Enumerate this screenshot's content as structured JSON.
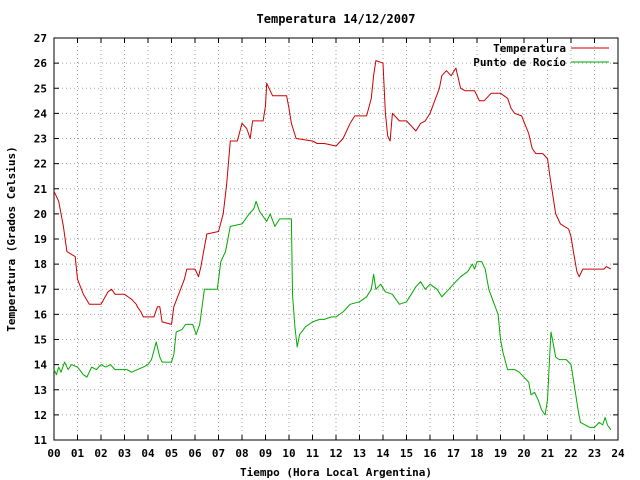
{
  "chart_data": {
    "type": "line",
    "title": "Temperatura 14/12/2007",
    "xlabel": "Tiempo (Hora Local Argentina)",
    "ylabel": "Temperatura (Grados Celsius)",
    "xlim": [
      0,
      24
    ],
    "ylim": [
      11,
      27
    ],
    "x_ticks": [
      "00",
      "01",
      "02",
      "03",
      "04",
      "05",
      "06",
      "07",
      "08",
      "09",
      "10",
      "11",
      "12",
      "13",
      "14",
      "15",
      "16",
      "17",
      "18",
      "19",
      "20",
      "21",
      "22",
      "23",
      "24"
    ],
    "y_ticks": [
      11,
      12,
      13,
      14,
      15,
      16,
      17,
      18,
      19,
      20,
      21,
      22,
      23,
      24,
      25,
      26,
      27
    ],
    "grid": true,
    "legend_position": "top-right",
    "series": [
      {
        "name": "Temperatura",
        "color": "#cc0000",
        "points": [
          [
            0.0,
            20.9
          ],
          [
            0.2,
            20.5
          ],
          [
            0.4,
            19.5
          ],
          [
            0.55,
            18.5
          ],
          [
            0.9,
            18.3
          ],
          [
            1.0,
            17.4
          ],
          [
            1.25,
            16.8
          ],
          [
            1.5,
            16.4
          ],
          [
            2.0,
            16.4
          ],
          [
            2.3,
            16.9
          ],
          [
            2.45,
            17.0
          ],
          [
            2.6,
            16.8
          ],
          [
            3.0,
            16.8
          ],
          [
            3.3,
            16.6
          ],
          [
            3.5,
            16.4
          ],
          [
            3.55,
            16.3
          ],
          [
            3.7,
            16.1
          ],
          [
            3.8,
            15.9
          ],
          [
            4.25,
            15.9
          ],
          [
            4.4,
            16.3
          ],
          [
            4.5,
            16.3
          ],
          [
            4.6,
            15.7
          ],
          [
            5.0,
            15.6
          ],
          [
            5.1,
            16.3
          ],
          [
            5.3,
            16.8
          ],
          [
            5.55,
            17.4
          ],
          [
            5.65,
            17.8
          ],
          [
            6.0,
            17.8
          ],
          [
            6.15,
            17.5
          ],
          [
            6.25,
            17.9
          ],
          [
            6.5,
            19.2
          ],
          [
            7.0,
            19.3
          ],
          [
            7.2,
            20.0
          ],
          [
            7.35,
            21.2
          ],
          [
            7.5,
            22.9
          ],
          [
            7.8,
            22.9
          ],
          [
            8.0,
            23.6
          ],
          [
            8.2,
            23.4
          ],
          [
            8.35,
            23.0
          ],
          [
            8.45,
            23.7
          ],
          [
            8.9,
            23.7
          ],
          [
            9.0,
            24.3
          ],
          [
            9.05,
            25.2
          ],
          [
            9.2,
            24.9
          ],
          [
            9.3,
            24.7
          ],
          [
            9.9,
            24.7
          ],
          [
            10.0,
            24.2
          ],
          [
            10.1,
            23.6
          ],
          [
            10.3,
            23.0
          ],
          [
            11.0,
            22.9
          ],
          [
            11.2,
            22.8
          ],
          [
            11.5,
            22.8
          ],
          [
            12.0,
            22.7
          ],
          [
            12.3,
            23.0
          ],
          [
            12.6,
            23.6
          ],
          [
            12.8,
            23.9
          ],
          [
            13.3,
            23.9
          ],
          [
            13.5,
            24.6
          ],
          [
            13.6,
            25.5
          ],
          [
            13.7,
            26.1
          ],
          [
            14.0,
            26.0
          ],
          [
            14.1,
            24.0
          ],
          [
            14.2,
            23.1
          ],
          [
            14.3,
            22.9
          ],
          [
            14.4,
            24.0
          ],
          [
            14.5,
            23.9
          ],
          [
            14.7,
            23.7
          ],
          [
            15.0,
            23.7
          ],
          [
            15.2,
            23.5
          ],
          [
            15.4,
            23.3
          ],
          [
            15.6,
            23.6
          ],
          [
            15.8,
            23.7
          ],
          [
            16.0,
            24.0
          ],
          [
            16.2,
            24.5
          ],
          [
            16.4,
            25.0
          ],
          [
            16.5,
            25.5
          ],
          [
            16.6,
            25.6
          ],
          [
            16.7,
            25.7
          ],
          [
            16.9,
            25.5
          ],
          [
            17.1,
            25.8
          ],
          [
            17.3,
            25.0
          ],
          [
            17.5,
            24.9
          ],
          [
            17.9,
            24.9
          ],
          [
            18.1,
            24.5
          ],
          [
            18.3,
            24.5
          ],
          [
            18.6,
            24.8
          ],
          [
            19.0,
            24.8
          ],
          [
            19.3,
            24.6
          ],
          [
            19.45,
            24.2
          ],
          [
            19.6,
            24.0
          ],
          [
            19.9,
            23.9
          ],
          [
            20.2,
            23.2
          ],
          [
            20.35,
            22.6
          ],
          [
            20.5,
            22.4
          ],
          [
            20.8,
            22.4
          ],
          [
            21.0,
            22.2
          ],
          [
            21.1,
            21.5
          ],
          [
            21.2,
            20.9
          ],
          [
            21.35,
            20.0
          ],
          [
            21.55,
            19.6
          ],
          [
            21.9,
            19.4
          ],
          [
            22.0,
            19.1
          ],
          [
            22.1,
            18.5
          ],
          [
            22.25,
            17.7
          ],
          [
            22.35,
            17.5
          ],
          [
            22.5,
            17.8
          ],
          [
            23.0,
            17.8
          ],
          [
            23.4,
            17.8
          ],
          [
            23.5,
            17.9
          ],
          [
            23.7,
            17.8
          ]
        ]
      },
      {
        "name": "Punto de Rocío",
        "color": "#00aa00",
        "points": [
          [
            0.0,
            13.8
          ],
          [
            0.1,
            13.6
          ],
          [
            0.2,
            13.9
          ],
          [
            0.3,
            13.7
          ],
          [
            0.45,
            14.1
          ],
          [
            0.6,
            13.8
          ],
          [
            0.75,
            14.0
          ],
          [
            1.0,
            13.9
          ],
          [
            1.25,
            13.6
          ],
          [
            1.4,
            13.5
          ],
          [
            1.6,
            13.9
          ],
          [
            1.8,
            13.8
          ],
          [
            2.0,
            14.0
          ],
          [
            2.2,
            13.9
          ],
          [
            2.4,
            14.0
          ],
          [
            2.6,
            13.8
          ],
          [
            2.9,
            13.8
          ],
          [
            3.1,
            13.8
          ],
          [
            3.3,
            13.7
          ],
          [
            3.55,
            13.8
          ],
          [
            3.8,
            13.9
          ],
          [
            4.0,
            14.0
          ],
          [
            4.15,
            14.2
          ],
          [
            4.35,
            14.9
          ],
          [
            4.5,
            14.3
          ],
          [
            4.6,
            14.1
          ],
          [
            5.0,
            14.1
          ],
          [
            5.1,
            14.4
          ],
          [
            5.2,
            15.3
          ],
          [
            5.45,
            15.4
          ],
          [
            5.6,
            15.6
          ],
          [
            5.9,
            15.6
          ],
          [
            6.05,
            15.2
          ],
          [
            6.2,
            15.6
          ],
          [
            6.4,
            17.0
          ],
          [
            6.95,
            17.0
          ],
          [
            7.1,
            18.1
          ],
          [
            7.3,
            18.5
          ],
          [
            7.5,
            19.5
          ],
          [
            8.0,
            19.6
          ],
          [
            8.3,
            20.0
          ],
          [
            8.5,
            20.2
          ],
          [
            8.6,
            20.5
          ],
          [
            8.75,
            20.1
          ],
          [
            8.9,
            19.9
          ],
          [
            9.05,
            19.7
          ],
          [
            9.2,
            20.0
          ],
          [
            9.4,
            19.5
          ],
          [
            9.6,
            19.8
          ],
          [
            10.0,
            19.8
          ],
          [
            10.1,
            19.8
          ],
          [
            10.15,
            16.8
          ],
          [
            10.25,
            15.5
          ],
          [
            10.35,
            14.7
          ],
          [
            10.45,
            15.2
          ],
          [
            10.7,
            15.5
          ],
          [
            11.0,
            15.7
          ],
          [
            11.3,
            15.8
          ],
          [
            11.5,
            15.8
          ],
          [
            11.8,
            15.9
          ],
          [
            12.0,
            15.9
          ],
          [
            12.3,
            16.1
          ],
          [
            12.6,
            16.4
          ],
          [
            13.0,
            16.5
          ],
          [
            13.3,
            16.7
          ],
          [
            13.5,
            17.0
          ],
          [
            13.6,
            17.6
          ],
          [
            13.7,
            17.0
          ],
          [
            13.9,
            17.2
          ],
          [
            14.1,
            16.9
          ],
          [
            14.4,
            16.8
          ],
          [
            14.7,
            16.4
          ],
          [
            15.0,
            16.5
          ],
          [
            15.2,
            16.8
          ],
          [
            15.4,
            17.1
          ],
          [
            15.6,
            17.3
          ],
          [
            15.8,
            17.0
          ],
          [
            16.0,
            17.2
          ],
          [
            16.3,
            17.0
          ],
          [
            16.5,
            16.7
          ],
          [
            16.8,
            17.0
          ],
          [
            17.0,
            17.2
          ],
          [
            17.3,
            17.5
          ],
          [
            17.6,
            17.7
          ],
          [
            17.8,
            18.0
          ],
          [
            17.9,
            17.8
          ],
          [
            18.0,
            18.1
          ],
          [
            18.2,
            18.1
          ],
          [
            18.35,
            17.8
          ],
          [
            18.5,
            17.0
          ],
          [
            18.7,
            16.5
          ],
          [
            18.9,
            16.0
          ],
          [
            19.0,
            15.0
          ],
          [
            19.1,
            14.5
          ],
          [
            19.3,
            13.8
          ],
          [
            19.6,
            13.8
          ],
          [
            19.8,
            13.7
          ],
          [
            20.0,
            13.5
          ],
          [
            20.2,
            13.3
          ],
          [
            20.3,
            12.8
          ],
          [
            20.45,
            12.9
          ],
          [
            20.6,
            12.6
          ],
          [
            20.75,
            12.2
          ],
          [
            20.9,
            12.0
          ],
          [
            21.0,
            12.6
          ],
          [
            21.1,
            14.5
          ],
          [
            21.15,
            15.3
          ],
          [
            21.25,
            14.8
          ],
          [
            21.35,
            14.3
          ],
          [
            21.5,
            14.2
          ],
          [
            21.8,
            14.2
          ],
          [
            22.0,
            14.0
          ],
          [
            22.1,
            13.4
          ],
          [
            22.3,
            12.2
          ],
          [
            22.4,
            11.7
          ],
          [
            22.6,
            11.6
          ],
          [
            22.8,
            11.5
          ],
          [
            23.0,
            11.5
          ],
          [
            23.2,
            11.7
          ],
          [
            23.35,
            11.6
          ],
          [
            23.45,
            11.9
          ],
          [
            23.55,
            11.6
          ],
          [
            23.7,
            11.4
          ]
        ]
      }
    ]
  }
}
